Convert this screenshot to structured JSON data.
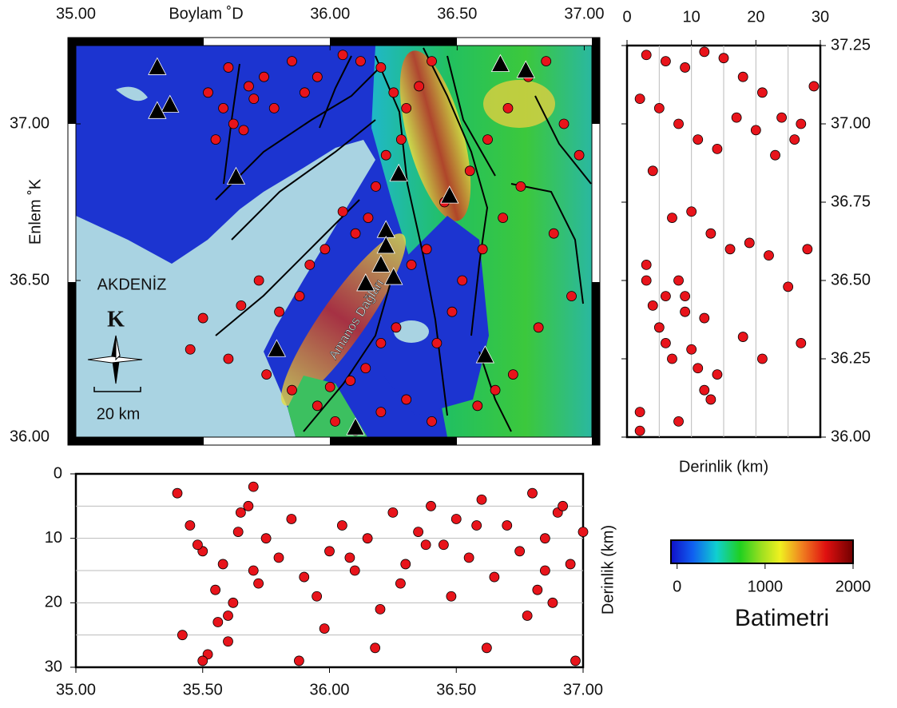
{
  "map": {
    "x_label": "Boylam ˚D",
    "y_label": "Enlem ˚K",
    "sea_label": "AKDENİZ",
    "range_label": "Amanos Dağları",
    "north_label": "K",
    "scale_label": "20 km",
    "xlim": [
      35,
      37.03
    ],
    "ylim": [
      36,
      37.25
    ],
    "xticks": [
      {
        "value": 35,
        "label": "35.00"
      },
      {
        "value": 36,
        "label": "36.00"
      },
      {
        "value": 36.5,
        "label": "36.50"
      },
      {
        "value": 37,
        "label": "37.00"
      }
    ],
    "yticks": [
      {
        "value": 36,
        "label": "36.00"
      },
      {
        "value": 36.5,
        "label": "36.50"
      },
      {
        "value": 37,
        "label": "37.00"
      }
    ],
    "stations": {
      "lon": [
        35.32,
        35.37,
        35.32,
        35.63,
        36.27,
        36.47,
        36.22,
        36.22,
        36.2,
        36.25,
        36.14,
        35.79,
        36.1,
        36.61,
        36.67,
        36.77
      ],
      "lat": [
        37.18,
        37.06,
        37.04,
        36.83,
        36.84,
        36.77,
        36.66,
        36.61,
        36.55,
        36.51,
        36.49,
        36.28,
        36.03,
        36.26,
        37.19,
        37.17
      ]
    },
    "events": {
      "lon": [
        35.52,
        35.58,
        35.62,
        35.66,
        35.7,
        35.74,
        35.55,
        35.6,
        35.68,
        35.78,
        35.85,
        35.9,
        35.95,
        36.05,
        36.12,
        36.2,
        36.25,
        36.3,
        36.35,
        36.4,
        36.28,
        36.22,
        36.18,
        36.15,
        36.1,
        36.05,
        35.98,
        35.92,
        35.88,
        35.8,
        35.72,
        35.65,
        35.5,
        35.45,
        35.6,
        35.75,
        35.85,
        35.95,
        36.02,
        36.08,
        36.14,
        36.2,
        36.26,
        36.32,
        36.38,
        36.45,
        36.55,
        36.62,
        36.7,
        36.78,
        36.85,
        36.92,
        36.98,
        36.75,
        36.68,
        36.6,
        36.52,
        36.48,
        36.42,
        36.88,
        36.95,
        36.82,
        36.72,
        36.65,
        36.58,
        36.4,
        36.3,
        36.2,
        36.1,
        36.0
      ],
      "lat": [
        37.1,
        37.05,
        37.0,
        36.98,
        37.08,
        37.15,
        36.95,
        37.18,
        37.12,
        37.05,
        37.2,
        37.1,
        37.15,
        37.22,
        37.2,
        37.18,
        37.1,
        37.05,
        37.12,
        37.2,
        36.95,
        36.9,
        36.8,
        36.7,
        36.65,
        36.72,
        36.6,
        36.55,
        36.45,
        36.4,
        36.5,
        36.42,
        36.38,
        36.28,
        36.25,
        36.2,
        36.15,
        36.1,
        36.05,
        36.18,
        36.22,
        36.3,
        36.35,
        36.55,
        36.6,
        36.75,
        36.85,
        36.95,
        37.05,
        37.15,
        37.2,
        37.0,
        36.9,
        36.8,
        36.7,
        36.6,
        36.5,
        36.4,
        36.3,
        36.65,
        36.45,
        36.35,
        36.2,
        36.15,
        36.1,
        36.05,
        36.12,
        36.08,
        36.02,
        36.16
      ]
    }
  },
  "depth_lat": {
    "x_label": "Derinlik (km)",
    "xlim": [
      0,
      30
    ],
    "ylim": [
      36,
      37.25
    ],
    "xticks": [
      0,
      10,
      20,
      30
    ],
    "xgrid": [
      5,
      10,
      15,
      20,
      25
    ],
    "yticks": [
      {
        "value": 36,
        "label": "36.00"
      },
      {
        "value": 36.25,
        "label": "36.25"
      },
      {
        "value": 36.5,
        "label": "36.50"
      },
      {
        "value": 36.75,
        "label": "36.75"
      },
      {
        "value": 37,
        "label": "37.00"
      },
      {
        "value": 37.25,
        "label": "37.25"
      }
    ],
    "depth": [
      3,
      6,
      9,
      12,
      15,
      18,
      21,
      24,
      27,
      29,
      5,
      8,
      11,
      14,
      17,
      20,
      23,
      26,
      2,
      4,
      7,
      10,
      13,
      16,
      19,
      22,
      25,
      28,
      3,
      6,
      9,
      12,
      4,
      5,
      6,
      7,
      8,
      9,
      10,
      11,
      12,
      14,
      18,
      21,
      27,
      2,
      8,
      13,
      2,
      3
    ],
    "lat": [
      37.22,
      37.2,
      37.18,
      37.23,
      37.21,
      37.15,
      37.1,
      37.02,
      37.0,
      37.12,
      37.05,
      37.0,
      36.95,
      36.92,
      37.02,
      36.98,
      36.9,
      36.95,
      37.08,
      36.85,
      36.7,
      36.72,
      36.65,
      36.6,
      36.62,
      36.58,
      36.48,
      36.6,
      36.55,
      36.45,
      36.4,
      36.38,
      36.42,
      36.35,
      36.3,
      36.25,
      36.5,
      36.45,
      36.28,
      36.22,
      36.15,
      36.2,
      36.32,
      36.25,
      36.3,
      36.08,
      36.05,
      36.12,
      36.02,
      36.5
    ]
  },
  "depth_lon": {
    "y_label": "Derinlik (km)",
    "xlim": [
      35,
      37
    ],
    "ylim": [
      0,
      30
    ],
    "xticks": [
      {
        "value": 35,
        "label": "35.00"
      },
      {
        "value": 35.5,
        "label": "35.50"
      },
      {
        "value": 36,
        "label": "36.00"
      },
      {
        "value": 36.5,
        "label": "36.50"
      },
      {
        "value": 37,
        "label": "37.00"
      }
    ],
    "yticks": [
      0,
      10,
      20,
      30
    ],
    "ygrid": [
      5,
      10,
      15,
      20,
      25
    ],
    "lon": [
      35.4,
      35.45,
      35.5,
      35.55,
      35.6,
      35.65,
      35.7,
      35.75,
      35.42,
      35.52,
      35.58,
      35.62,
      35.68,
      35.72,
      35.48,
      35.56,
      35.64,
      35.8,
      35.85,
      35.9,
      35.95,
      36.0,
      36.05,
      36.1,
      36.15,
      36.2,
      36.25,
      36.3,
      36.35,
      36.4,
      36.45,
      36.5,
      36.55,
      36.6,
      36.65,
      36.7,
      36.75,
      36.8,
      36.85,
      36.9,
      36.95,
      37.0,
      36.82,
      36.88,
      36.92,
      36.78,
      35.88,
      35.98,
      36.08,
      36.18,
      36.28,
      36.38,
      36.48,
      36.58,
      35.5,
      35.6,
      35.7,
      36.62,
      36.97,
      36.85
    ],
    "depth": [
      3,
      8,
      12,
      18,
      22,
      6,
      15,
      10,
      25,
      28,
      14,
      20,
      5,
      17,
      11,
      23,
      9,
      13,
      7,
      16,
      19,
      12,
      8,
      15,
      10,
      21,
      6,
      14,
      9,
      5,
      11,
      7,
      13,
      4,
      16,
      8,
      12,
      3,
      10,
      6,
      14,
      9,
      18,
      20,
      5,
      22,
      29,
      24,
      13,
      27,
      17,
      11,
      19,
      8,
      29,
      26,
      2,
      27,
      29,
      15
    ]
  },
  "colorbar": {
    "title": "Batimetri",
    "lim": [
      -70,
      2000
    ],
    "ticks": [
      0,
      1000,
      2000
    ]
  }
}
